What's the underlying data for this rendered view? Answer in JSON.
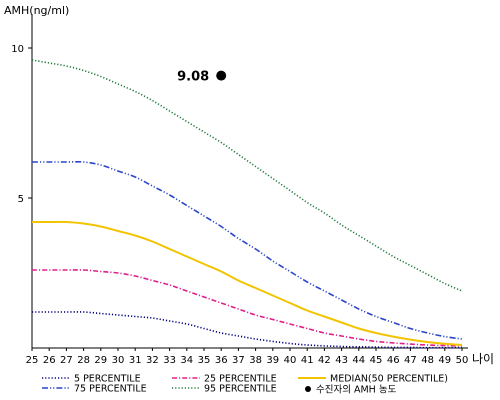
{
  "chart_data": {
    "type": "line",
    "ylabel": "AMH(ng/ml)",
    "xlabel": "나이",
    "xlim": [
      25,
      50
    ],
    "ylim": [
      0,
      11
    ],
    "yticks": [
      5,
      10
    ],
    "x": [
      25,
      26,
      27,
      28,
      29,
      30,
      31,
      32,
      33,
      34,
      35,
      36,
      37,
      38,
      39,
      40,
      41,
      42,
      43,
      44,
      45,
      46,
      47,
      48,
      49,
      50
    ],
    "series": [
      {
        "name": "5 PERCENTILE",
        "color": "#000080",
        "dash": "dotted",
        "values": [
          1.2,
          1.2,
          1.2,
          1.2,
          1.15,
          1.1,
          1.05,
          1.0,
          0.9,
          0.8,
          0.65,
          0.5,
          0.4,
          0.3,
          0.22,
          0.15,
          0.1,
          0.07,
          0.05,
          0.04,
          0.03,
          0.02,
          0.02,
          0.01,
          0.01,
          0.01
        ]
      },
      {
        "name": "25 PERCENTILE",
        "color": "#e0208a",
        "dash": "dashdot",
        "values": [
          2.6,
          2.6,
          2.6,
          2.6,
          2.55,
          2.5,
          2.4,
          2.25,
          2.1,
          1.9,
          1.7,
          1.5,
          1.3,
          1.1,
          0.95,
          0.8,
          0.65,
          0.5,
          0.4,
          0.3,
          0.22,
          0.17,
          0.13,
          0.1,
          0.08,
          0.07
        ]
      },
      {
        "name": "MEDIAN(50 PERCENTILE)",
        "color": "#f2c400",
        "dash": "solid",
        "values": [
          4.2,
          4.2,
          4.2,
          4.15,
          4.05,
          3.9,
          3.75,
          3.55,
          3.3,
          3.05,
          2.8,
          2.55,
          2.25,
          2.0,
          1.75,
          1.5,
          1.25,
          1.05,
          0.85,
          0.65,
          0.5,
          0.38,
          0.28,
          0.2,
          0.14,
          0.1
        ]
      },
      {
        "name": "75 PERCENTILE",
        "color": "#2a46c8",
        "dash": "dashdotdot",
        "values": [
          6.2,
          6.2,
          6.2,
          6.2,
          6.1,
          5.9,
          5.7,
          5.4,
          5.1,
          4.75,
          4.4,
          4.05,
          3.65,
          3.3,
          2.9,
          2.55,
          2.2,
          1.9,
          1.6,
          1.3,
          1.05,
          0.85,
          0.65,
          0.5,
          0.38,
          0.3
        ]
      },
      {
        "name": "95 PERCENTILE",
        "color": "#1e7a3c",
        "dash": "dotted",
        "values": [
          9.6,
          9.5,
          9.4,
          9.25,
          9.05,
          8.8,
          8.55,
          8.25,
          7.9,
          7.55,
          7.2,
          6.85,
          6.45,
          6.05,
          5.65,
          5.25,
          4.85,
          4.5,
          4.1,
          3.75,
          3.4,
          3.05,
          2.75,
          2.45,
          2.15,
          1.9
        ]
      }
    ],
    "points": [
      {
        "name": "수진자의 AMH 농도",
        "x": 36,
        "y": 9.08,
        "label": "9.08",
        "color": "#000000"
      }
    ],
    "legend": "bottom"
  }
}
